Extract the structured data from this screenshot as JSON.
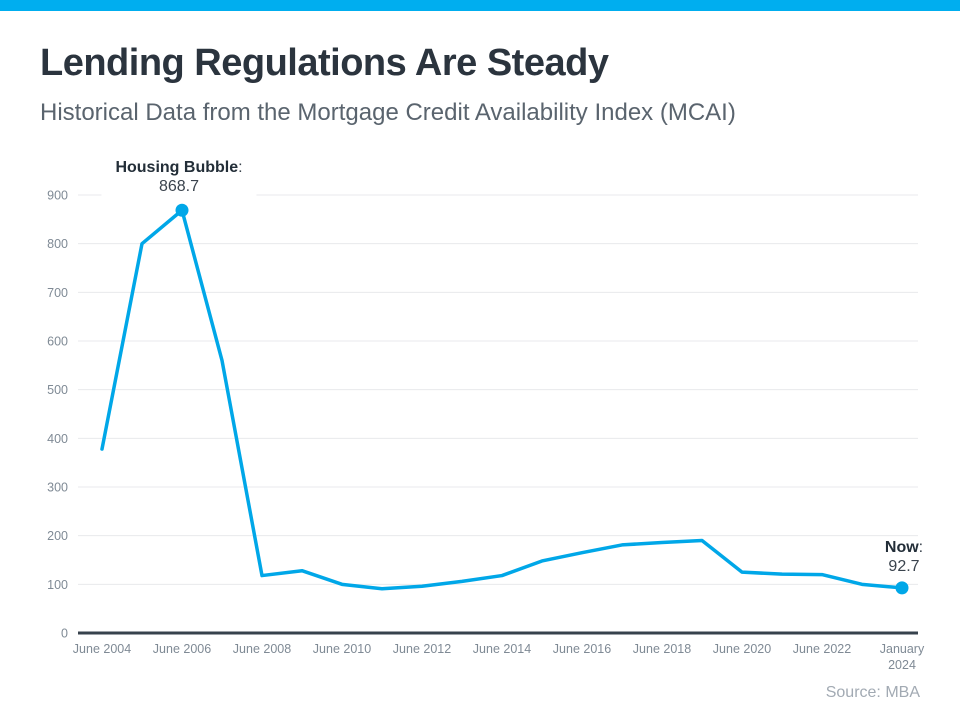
{
  "header": {
    "title": "Lending Regulations Are Steady",
    "subtitle": "Historical Data from the Mortgage Credit Availability Index (MCAI)"
  },
  "source_note": "Source: MBA",
  "colors": {
    "accent_bar": "#00aeef",
    "line": "#00a7e8",
    "title_text": "#2b343e",
    "subtitle_text": "#5a646e",
    "tick_text": "#7f8a95",
    "gridline": "#e8eaec",
    "axis_line": "#37424d"
  },
  "chart_data": {
    "type": "line",
    "title": "Lending Regulations Are Steady",
    "subtitle": "Historical Data from the Mortgage Credit Availability Index (MCAI)",
    "xlabel": "",
    "ylabel": "",
    "ylim": [
      0,
      900
    ],
    "y_ticks": [
      0,
      100,
      200,
      300,
      400,
      500,
      600,
      700,
      800,
      900
    ],
    "grid": "horizontal",
    "legend": "none",
    "x_tick_labels": [
      "June 2004",
      "June 2006",
      "June 2008",
      "June 2010",
      "June 2012",
      "June 2014",
      "June 2016",
      "June 2018",
      "June 2020",
      "June 2022",
      "January 2024"
    ],
    "series": [
      {
        "name": "Mortgage Credit Availability Index",
        "color": "#00a7e8",
        "points": [
          {
            "label": "June 2004",
            "value": 378
          },
          {
            "label": "June 2005",
            "value": 800
          },
          {
            "label": "June 2006",
            "value": 868.7
          },
          {
            "label": "June 2007",
            "value": 560
          },
          {
            "label": "June 2008",
            "value": 118
          },
          {
            "label": "June 2009",
            "value": 128
          },
          {
            "label": "June 2010",
            "value": 100
          },
          {
            "label": "June 2011",
            "value": 91
          },
          {
            "label": "June 2012",
            "value": 96
          },
          {
            "label": "June 2013",
            "value": 106
          },
          {
            "label": "June 2014",
            "value": 118
          },
          {
            "label": "June 2015",
            "value": 148
          },
          {
            "label": "June 2016",
            "value": 165
          },
          {
            "label": "June 2017",
            "value": 181
          },
          {
            "label": "June 2018",
            "value": 186
          },
          {
            "label": "June 2019",
            "value": 190
          },
          {
            "label": "June 2020",
            "value": 125
          },
          {
            "label": "June 2021",
            "value": 121
          },
          {
            "label": "June 2022",
            "value": 120
          },
          {
            "label": "June 2023",
            "value": 100
          },
          {
            "label": "January 2024",
            "value": 92.7
          }
        ]
      }
    ],
    "annotations": [
      {
        "label": "Housing Bubble",
        "colon": ":",
        "value": "868.7",
        "point_index": 2
      },
      {
        "label": "Now",
        "colon": ":",
        "value": "92.7",
        "point_index": 20
      }
    ]
  }
}
